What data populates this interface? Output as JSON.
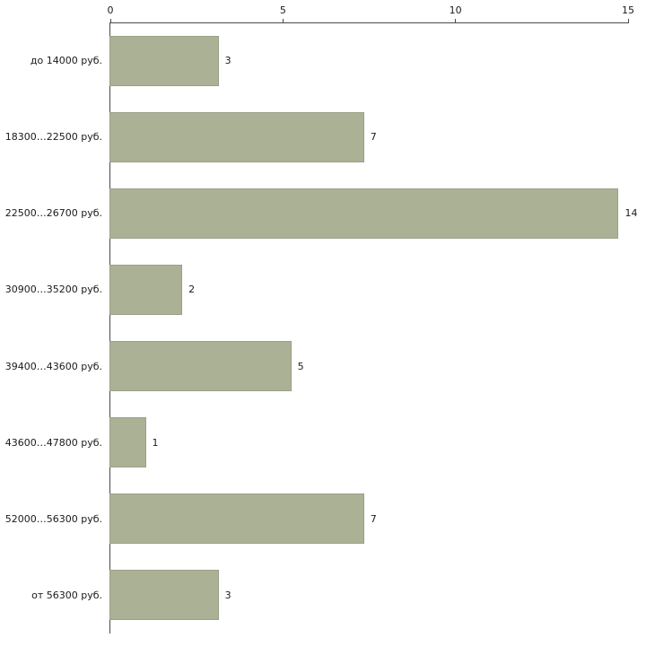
{
  "chart_data": {
    "type": "bar",
    "orientation": "horizontal",
    "title": "",
    "xlabel": "",
    "ylabel": "",
    "categories": [
      "до 14000 руб.",
      "18300…22500 руб.",
      "22500…26700 руб.",
      "30900…35200 руб.",
      "39400…43600 руб.",
      "43600…47800 руб.",
      "52000…56300 руб.",
      "от 56300 руб."
    ],
    "values": [
      3,
      7,
      14,
      2,
      5,
      1,
      7,
      3
    ],
    "xlim": [
      0,
      15
    ],
    "x_ticks": [
      0,
      5,
      10,
      15
    ],
    "x_axis_position": "top",
    "grid": false,
    "legend": false,
    "colors": {
      "bar_fill": "#abb195",
      "bar_border": "#9aa186",
      "axis_line": "#4a4a4a",
      "text": "#1a1a1a",
      "background": "#ffffff"
    }
  }
}
